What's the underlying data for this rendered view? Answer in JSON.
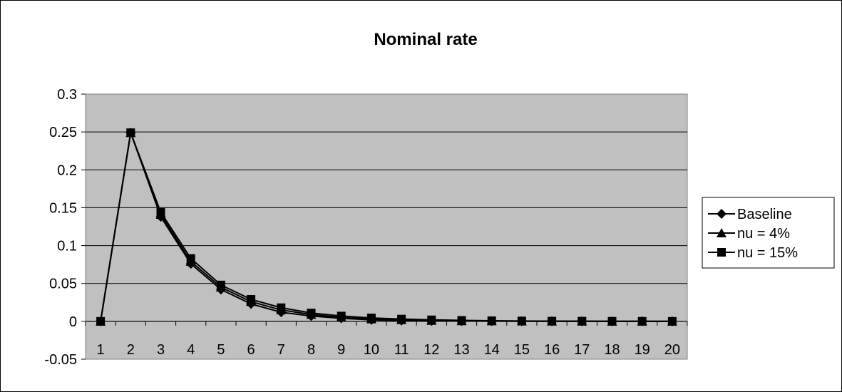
{
  "chart_data": {
    "type": "line",
    "title": "Nominal rate",
    "xlabel": "",
    "ylabel": "",
    "x": [
      "1",
      "2",
      "3",
      "4",
      "5",
      "6",
      "7",
      "8",
      "9",
      "10",
      "11",
      "12",
      "13",
      "14",
      "15",
      "16",
      "17",
      "18",
      "19",
      "20"
    ],
    "ylim": [
      -0.05,
      0.3
    ],
    "yticks": [
      "0.3",
      "0.25",
      "0.2",
      "0.15",
      "0.1",
      "0.05",
      "0",
      "-0.05"
    ],
    "ytick_values": [
      0.3,
      0.25,
      0.2,
      0.15,
      0.1,
      0.05,
      0,
      -0.05
    ],
    "grid": true,
    "legend_position": "right",
    "plot_background": "#c0c0c0",
    "line_color": "#000000",
    "series": [
      {
        "name": "Baseline",
        "marker": "diamond",
        "values": [
          0,
          0.249,
          0.138,
          0.076,
          0.042,
          0.023,
          0.012,
          0.007,
          0.004,
          0.002,
          0.001,
          0.0006,
          0.0003,
          0.0002,
          0.0001,
          0.0001,
          0,
          0,
          0,
          0
        ]
      },
      {
        "name": "nu = 4%",
        "marker": "triangle",
        "values": [
          0,
          0.249,
          0.141,
          0.079,
          0.045,
          0.026,
          0.015,
          0.009,
          0.005,
          0.003,
          0.002,
          0.001,
          0.0006,
          0.0004,
          0.0002,
          0.0001,
          0.0001,
          0,
          0,
          0
        ]
      },
      {
        "name": "nu = 15%",
        "marker": "square",
        "values": [
          0,
          0.249,
          0.144,
          0.083,
          0.048,
          0.029,
          0.018,
          0.011,
          0.007,
          0.0045,
          0.003,
          0.002,
          0.0013,
          0.0008,
          0.0005,
          0.0003,
          0.0002,
          0.0001,
          0.0001,
          0
        ]
      }
    ]
  }
}
